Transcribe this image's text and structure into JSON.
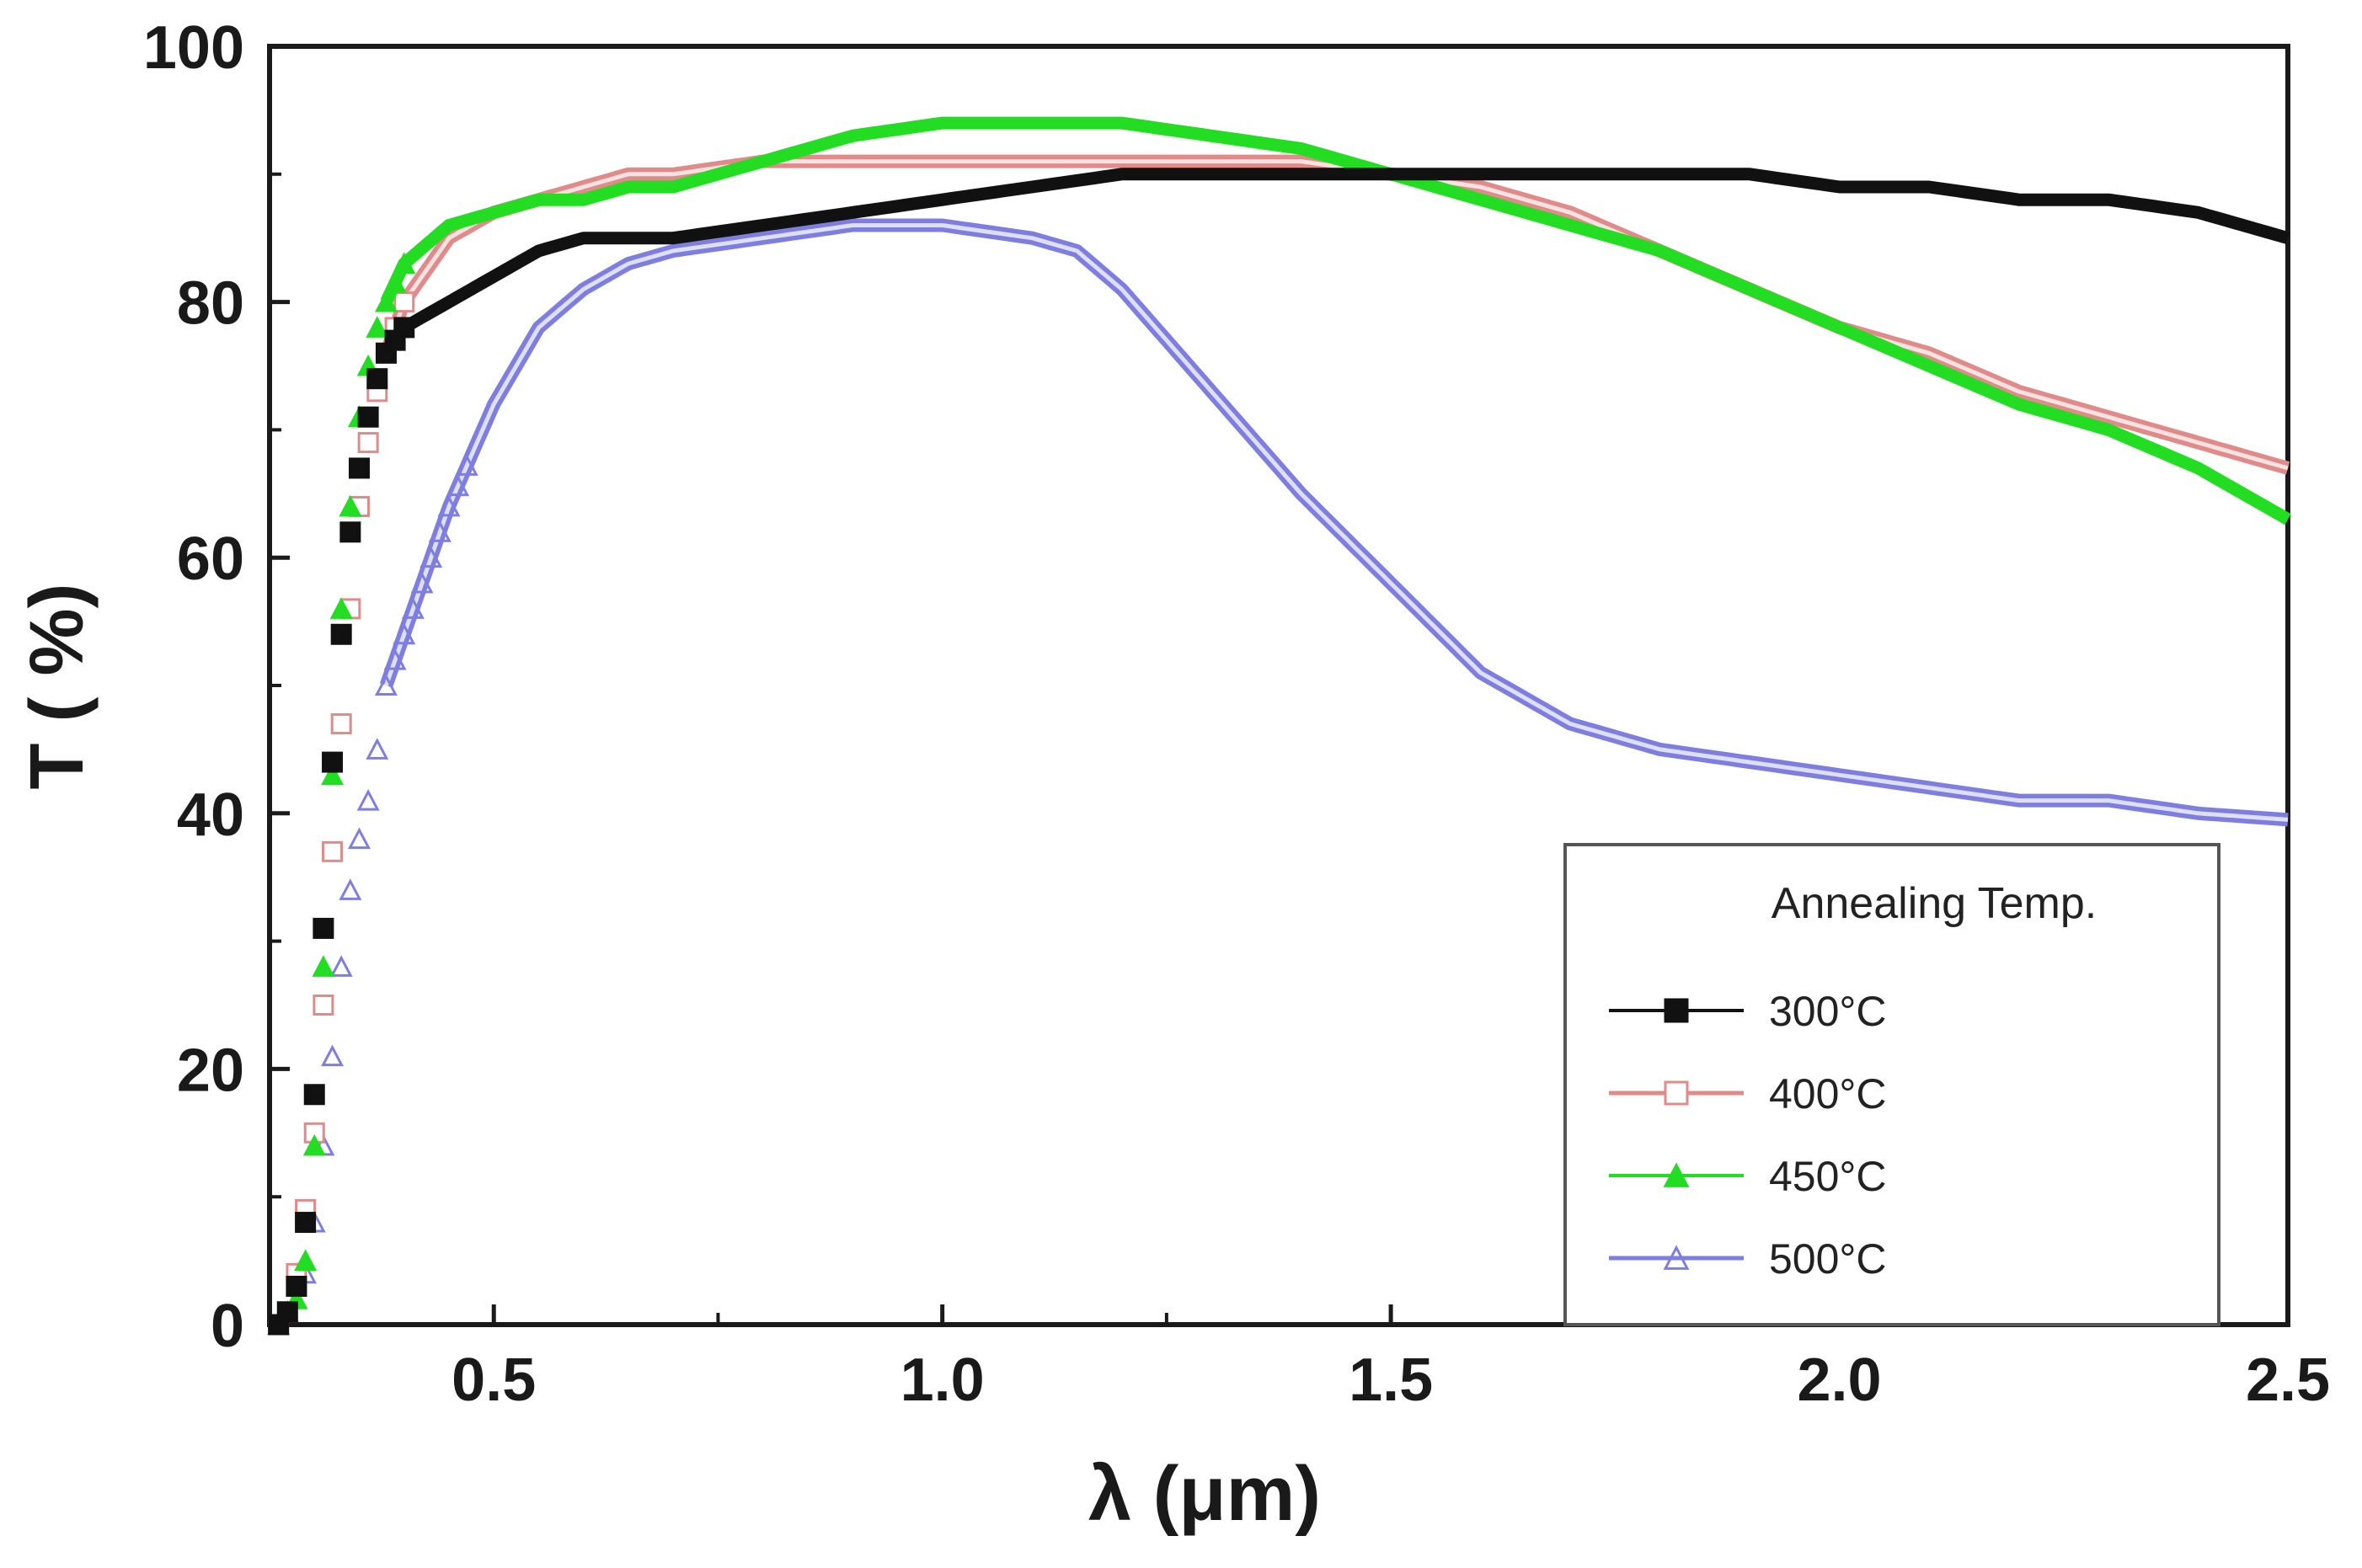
{
  "chart_data": {
    "type": "line",
    "title": "",
    "xlabel": "λ (μm)",
    "ylabel": "T ( %)",
    "xlim": [
      0.25,
      2.5
    ],
    "ylim": [
      0,
      100
    ],
    "x_ticks": [
      "0.5",
      "1.0",
      "1.5",
      "2.0",
      "2.5"
    ],
    "y_ticks": [
      "0",
      "20",
      "40",
      "60",
      "80",
      "100"
    ],
    "legend": {
      "title": "Annealing Temp.",
      "position": "bottom-right"
    },
    "series": [
      {
        "name": "300°C",
        "color": "#111111",
        "marker": "filled-square",
        "x": [
          0.26,
          0.27,
          0.28,
          0.29,
          0.3,
          0.31,
          0.32,
          0.33,
          0.34,
          0.35,
          0.36,
          0.37,
          0.38,
          0.4,
          0.45,
          0.5,
          0.55,
          0.6,
          0.65,
          0.7,
          0.8,
          0.9,
          1.0,
          1.1,
          1.2,
          1.3,
          1.4,
          1.5,
          1.6,
          1.7,
          1.8,
          1.9,
          2.0,
          2.1,
          2.2,
          2.3,
          2.4,
          2.5
        ],
        "y": [
          0,
          1,
          3,
          8,
          18,
          31,
          44,
          54,
          62,
          67,
          71,
          74,
          76,
          78,
          80,
          82,
          84,
          85,
          85,
          85,
          86,
          87,
          88,
          89,
          90,
          90,
          90,
          90,
          90,
          90,
          90,
          90,
          89,
          89,
          88,
          88,
          87,
          85
        ]
      },
      {
        "name": "400°C",
        "color": "#e08a8a",
        "marker": "open-square",
        "x": [
          0.26,
          0.27,
          0.28,
          0.29,
          0.3,
          0.31,
          0.32,
          0.33,
          0.34,
          0.35,
          0.36,
          0.37,
          0.38,
          0.4,
          0.45,
          0.5,
          0.55,
          0.6,
          0.65,
          0.7,
          0.8,
          0.9,
          1.0,
          1.1,
          1.2,
          1.3,
          1.4,
          1.5,
          1.6,
          1.7,
          1.8,
          1.9,
          2.0,
          2.1,
          2.2,
          2.3,
          2.4,
          2.5
        ],
        "y": [
          0,
          1,
          4,
          9,
          15,
          25,
          37,
          47,
          56,
          64,
          69,
          73,
          76,
          80,
          85,
          87,
          88,
          89,
          90,
          90,
          91,
          91,
          91,
          91,
          91,
          91,
          91,
          90,
          89,
          87,
          84,
          81,
          78,
          76,
          73,
          71,
          69,
          67
        ]
      },
      {
        "name": "450°C",
        "color": "#22dd22",
        "marker": "filled-triangle",
        "x": [
          0.26,
          0.27,
          0.28,
          0.29,
          0.3,
          0.31,
          0.32,
          0.33,
          0.34,
          0.35,
          0.36,
          0.37,
          0.38,
          0.4,
          0.45,
          0.5,
          0.55,
          0.6,
          0.65,
          0.7,
          0.8,
          0.9,
          1.0,
          1.1,
          1.2,
          1.3,
          1.4,
          1.5,
          1.6,
          1.7,
          1.8,
          1.9,
          2.0,
          2.1,
          2.2,
          2.3,
          2.4,
          2.5
        ],
        "y": [
          0,
          1,
          2,
          5,
          14,
          28,
          43,
          56,
          64,
          71,
          75,
          78,
          80,
          83,
          86,
          87,
          88,
          88,
          89,
          89,
          91,
          93,
          94,
          94,
          94,
          93,
          92,
          90,
          88,
          86,
          84,
          81,
          78,
          75,
          72,
          70,
          67,
          63
        ]
      },
      {
        "name": "500°C",
        "color": "#7e7ee0",
        "marker": "open-triangle",
        "x": [
          0.26,
          0.27,
          0.28,
          0.29,
          0.3,
          0.31,
          0.32,
          0.33,
          0.34,
          0.35,
          0.36,
          0.37,
          0.38,
          0.4,
          0.45,
          0.5,
          0.55,
          0.6,
          0.65,
          0.7,
          0.8,
          0.9,
          1.0,
          1.1,
          1.15,
          1.2,
          1.3,
          1.4,
          1.5,
          1.6,
          1.7,
          1.8,
          1.9,
          2.0,
          2.1,
          2.2,
          2.3,
          2.4,
          2.5
        ],
        "y": [
          0,
          1,
          2,
          4,
          8,
          14,
          21,
          28,
          34,
          38,
          41,
          45,
          50,
          54,
          64,
          72,
          78,
          81,
          83,
          84,
          85,
          86,
          86,
          85,
          84,
          81,
          73,
          65,
          58,
          51,
          47,
          45,
          44,
          43,
          42,
          41,
          41,
          40,
          39.5
        ]
      }
    ]
  }
}
